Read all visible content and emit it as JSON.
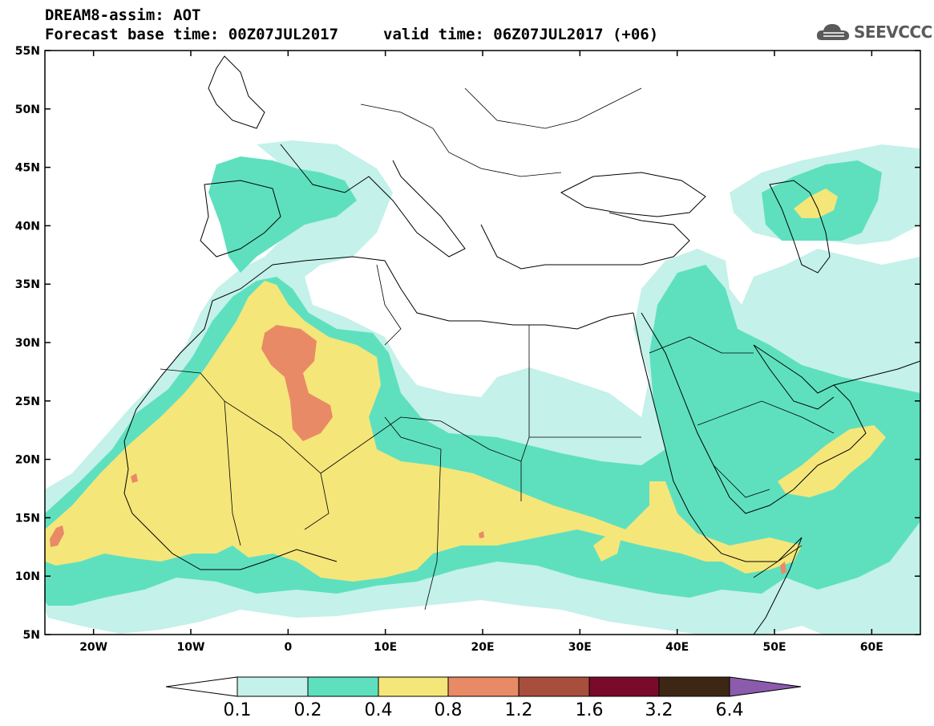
{
  "header": {
    "line1": "DREAM8-assim: AOT",
    "line2": "Forecast base time: 00Z07JUL2017",
    "valid": "valid time: 06Z07JUL2017 (+06)",
    "logo_text": "SEEVCCC"
  },
  "map": {
    "lon_range": [
      -25,
      65
    ],
    "lat_range": [
      5,
      55
    ],
    "lat_labels": [
      "55N",
      "50N",
      "45N",
      "40N",
      "35N",
      "30N",
      "25N",
      "20N",
      "15N",
      "10N",
      "5N"
    ],
    "lat_values": [
      55,
      50,
      45,
      40,
      35,
      30,
      25,
      20,
      15,
      10,
      5
    ],
    "lon_labels": [
      "20W",
      "10W",
      "0",
      "10E",
      "20E",
      "30E",
      "40E",
      "50E",
      "60E"
    ],
    "lon_values": [
      -20,
      -10,
      0,
      10,
      20,
      30,
      40,
      50,
      60
    ]
  },
  "colorbar": {
    "labels": [
      "0.1",
      "0.2",
      "0.4",
      "0.8",
      "1.2",
      "1.6",
      "3.2",
      "6.4"
    ],
    "colors": {
      "lt01": "#ffffff",
      "b01_02": "#c4f1ea",
      "b02_04": "#5ee0bf",
      "b04_08": "#f5e67a",
      "b08_12": "#e98a66",
      "b12_16": "#a84e3c",
      "b16_32": "#7a0a2a",
      "b32_64": "#3d2714",
      "gt64": "#8a5cab"
    }
  }
}
